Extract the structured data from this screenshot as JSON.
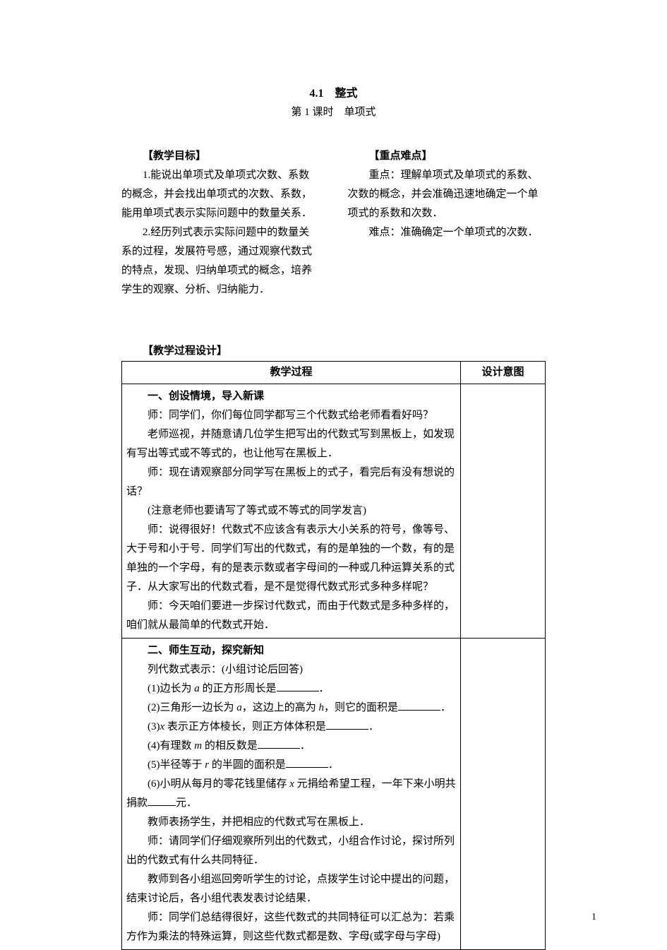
{
  "title": {
    "main": "4.1　整式",
    "sub": "第 1 课时　单项式"
  },
  "left": {
    "heading": "【教学目标】",
    "p1": "1.能说出单项式及单项式次数、系数的概念，并会找出单项式的次数、系数，能用单项式表示实际问题中的数量关系．",
    "p2": "2.经历列式表示实际问题中的数量关系的过程，发展符号感，通过观察代数式的特点，发现、归纳单项式的概念，培养学生的观察、分析、归纳能力．"
  },
  "right": {
    "heading": "【重点难点】",
    "p1": "重点：理解单项式及单项式的系数、次数的概念，并会准确迅速地确定一个单项式的系数和次数．",
    "p2": "难点：准确确定一个单项式的次数．"
  },
  "design_heading": "【教学过程设计】",
  "table": {
    "col1": "教学过程",
    "col2": "设计意图",
    "sec1": {
      "head": "一、创设情境，导入新课",
      "l1": "师：同学们，你们每位同学都写三个代数式给老师看看好吗？",
      "l2": "老师巡视，并随意请几位学生把写出的代数式写到黑板上，如发现有写出等式或不等式的，也让他写在黑板上．",
      "l3": "师：现在请观察部分同学写在黑板上的式子，看完后有没有想说的话？",
      "l4": "(注意老师也要请写了等式或不等式的同学发言)",
      "l5": "师：说得很好！代数式不应该含有表示大小关系的符号，像等号、大于号和小于号．同学们写出的代数式，有的是单独的一个数，有的是单独的一个字母，有的是表示数或者字母间的一种或几种运算关系的式子．从大家写出的代数式看，是不是觉得代数式形式多种多样呢？",
      "l6": "师：今天咱们要进一步探讨代数式，而由于代数式是多种多样的，咱们就从最简单的代数式开始．"
    },
    "sec2": {
      "head": "二、师生互动，探究新知",
      "l1": "列代数式表示：(小组讨论后回答)",
      "q1a": "(1)边长为 ",
      "q1b": " 的正方形周长是",
      "q2a": "(2)三角形一边长为 ",
      "q2b": "，这边上的高为 ",
      "q2c": "，则它的面积是",
      "q3a": "(3)",
      "q3b": " 表示正方体棱长，则正方体体积是",
      "q4a": "(4)有理数 ",
      "q4b": " 的相反数是",
      "q5a": "(5)半径等于 ",
      "q5b": " 的半圆的面积是",
      "q6a": "(6)小明从每月的零花钱里储存 ",
      "q6b": " 元捐给希望工程，一年下来小明共捐款",
      "q6c": "元．",
      "l7": "教师表扬学生，并把相应的代数式写在黑板上．",
      "l8": "师：请同学们仔细观察所列出的代数式，小组合作讨论，探讨所列出的代数式有什么共同特征．",
      "l9": "教师到各小组巡回旁听学生的讨论，点拨学生讨论中提出的问题，结束讨论后，各小组代表发表讨论结果．",
      "l10": "师：同学们总结得很好，这些代数式的共同特征可以汇总为：若乘方作为乘法的特殊运算，则这些代数式都是数、字母(或字母与字母)"
    }
  },
  "vars": {
    "a": "a",
    "h": "h",
    "x": "x",
    "m": "m",
    "r": "r"
  },
  "pagenum": "1",
  "colors": {
    "text": "#000000",
    "bg": "#ffffff",
    "border": "#000000"
  },
  "fonts": {
    "body_size": 15,
    "title_size": 16,
    "line_height": 27
  }
}
